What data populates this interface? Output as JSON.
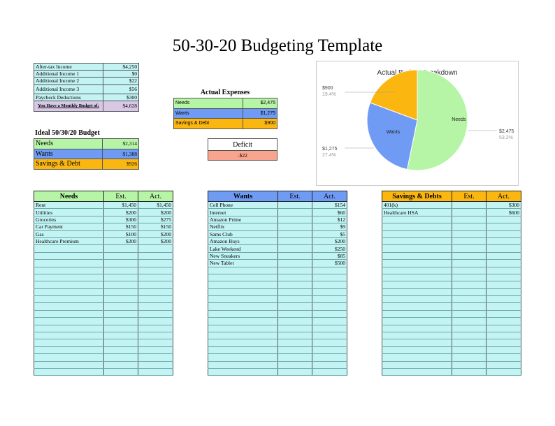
{
  "page": {
    "title": "50-30-20 Budgeting Template"
  },
  "colors": {
    "needs": "#b5f5a5",
    "wants": "#6f9bf5",
    "savings": "#fbb710",
    "cyan": "#c4f3f3",
    "deficit": "#f9a48e",
    "budget": "#d8c8e6"
  },
  "income": {
    "rows": [
      {
        "label": "After-tax Income",
        "value": "$4,250"
      },
      {
        "label": "Additional Income 1",
        "value": "$0"
      },
      {
        "label": "Additional Income 2",
        "value": "$22"
      },
      {
        "label": "Additional Income 3",
        "value": "$56"
      },
      {
        "label": "Paycheck Deductions",
        "value": "$300"
      }
    ],
    "budget_label": "You Have a Monthly Budget of:",
    "budget_value": "$4,628"
  },
  "ideal": {
    "title": "Ideal 50/30/20 Budget",
    "rows": [
      {
        "label": "Needs",
        "value": "$2,314"
      },
      {
        "label": "Wants",
        "value": "$1,388"
      },
      {
        "label": "Savings & Debt",
        "value": "$926"
      }
    ]
  },
  "actual": {
    "title": "Actual Expenses",
    "rows": [
      {
        "label": "Needs",
        "value": "$2,475"
      },
      {
        "label": "Wants",
        "value": "$1,275"
      },
      {
        "label": "Savings & Debt",
        "value": "$900"
      }
    ]
  },
  "deficit": {
    "label": "Deficit",
    "value": "-$22"
  },
  "chart_data": {
    "type": "pie",
    "title": "Actual Budget Breakdown",
    "slices": [
      {
        "name": "Needs",
        "value": 2475,
        "value_label": "$2,475",
        "pct_label": "53.2%",
        "color": "#b5f5a5"
      },
      {
        "name": "Wants",
        "value": 1275,
        "value_label": "$1,275",
        "pct_label": "27.4%",
        "color": "#6f9bf5"
      },
      {
        "name": "",
        "value": 900,
        "value_label": "$900",
        "pct_label": "19.4%",
        "color": "#fbb710"
      }
    ]
  },
  "needs_table": {
    "headers": [
      "Needs",
      "Est.",
      "Act."
    ],
    "rows": [
      [
        "Rent",
        "$1,450",
        "$1,450"
      ],
      [
        "Utilities",
        "$200",
        "$200"
      ],
      [
        "Groceries",
        "$300",
        "$275"
      ],
      [
        "Car Payment",
        "$150",
        "$150"
      ],
      [
        "Gas",
        "$100",
        "$200"
      ],
      [
        "Healthcare Premium",
        "$200",
        "$200"
      ]
    ]
  },
  "wants_table": {
    "headers": [
      "Wants",
      "Est.",
      "Act."
    ],
    "rows": [
      [
        "Cell Phone",
        "",
        "$154"
      ],
      [
        "Internet",
        "",
        "$60"
      ],
      [
        "Amazon Prime",
        "",
        "$12"
      ],
      [
        "Netflix",
        "",
        "$9"
      ],
      [
        "Sams Club",
        "",
        "$5"
      ],
      [
        "Amazon Buys",
        "",
        "$200"
      ],
      [
        "Lake Weekend",
        "",
        "$250"
      ],
      [
        "New Sneakers",
        "",
        "$85"
      ],
      [
        "New Tablet",
        "",
        "$500"
      ]
    ]
  },
  "savings_table": {
    "headers": [
      "Savings & Debts",
      "Est.",
      "Act."
    ],
    "rows": [
      [
        "401(k)",
        "",
        "$300"
      ],
      [
        "Healthcare HSA",
        "",
        "$600"
      ]
    ]
  }
}
